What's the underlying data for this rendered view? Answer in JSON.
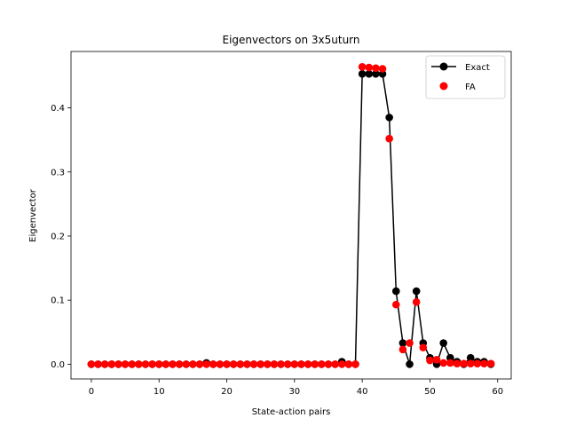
{
  "chart_data": {
    "type": "line",
    "title": "Eigenvectors on 3x5uturn",
    "xlabel": "State-action pairs",
    "ylabel": "Eigenvector",
    "xlim": [
      -3,
      62
    ],
    "ylim": [
      -0.023,
      0.488
    ],
    "xticks": [
      0,
      10,
      20,
      30,
      40,
      50,
      60
    ],
    "yticks": [
      0.0,
      0.1,
      0.2,
      0.3,
      0.4
    ],
    "ytick_labels": [
      "0.0",
      "0.1",
      "0.2",
      "0.3",
      "0.4"
    ],
    "grid": false,
    "legend_position": "top-right",
    "x": [
      0,
      1,
      2,
      3,
      4,
      5,
      6,
      7,
      8,
      9,
      10,
      11,
      12,
      13,
      14,
      15,
      16,
      17,
      18,
      19,
      20,
      21,
      22,
      23,
      24,
      25,
      26,
      27,
      28,
      29,
      30,
      31,
      32,
      33,
      34,
      35,
      36,
      37,
      38,
      39,
      40,
      41,
      42,
      43,
      44,
      45,
      46,
      47,
      48,
      49,
      50,
      51,
      52,
      53,
      54,
      55,
      56,
      57,
      58,
      59
    ],
    "series": [
      {
        "name": "Exact",
        "style": "line-marker",
        "color": "#000000",
        "values": [
          0,
          0,
          0,
          0,
          0,
          0,
          0,
          0,
          0,
          0,
          0,
          0,
          0,
          0,
          0,
          0,
          0,
          0.002,
          0,
          0,
          0,
          0,
          0,
          0,
          0,
          0,
          0,
          0,
          0,
          0,
          0,
          0,
          0,
          0,
          0,
          0,
          0,
          0.004,
          0,
          0,
          0.453,
          0.453,
          0.453,
          0.453,
          0.385,
          0.114,
          0.033,
          0,
          0.114,
          0.033,
          0.01,
          0,
          0.033,
          0.01,
          0.004,
          0,
          0.01,
          0.004,
          0.004,
          0
        ]
      },
      {
        "name": "FA",
        "style": "marker",
        "color": "#ff0000",
        "values": [
          0,
          0,
          0,
          0,
          0,
          0,
          0,
          0,
          0,
          0,
          0,
          0,
          0,
          0,
          0,
          0,
          0,
          0,
          0,
          0,
          0,
          0,
          0,
          0,
          0,
          0,
          0,
          0,
          0,
          0,
          0,
          0,
          0,
          0,
          0,
          0,
          0,
          0,
          0,
          0,
          0.464,
          0.463,
          0.462,
          0.461,
          0.352,
          0.093,
          0.023,
          0.033,
          0.097,
          0.026,
          0.006,
          0.007,
          0.002,
          0.002,
          0.001,
          0.001,
          0.001,
          0.001,
          0.001,
          0.001
        ]
      }
    ]
  }
}
